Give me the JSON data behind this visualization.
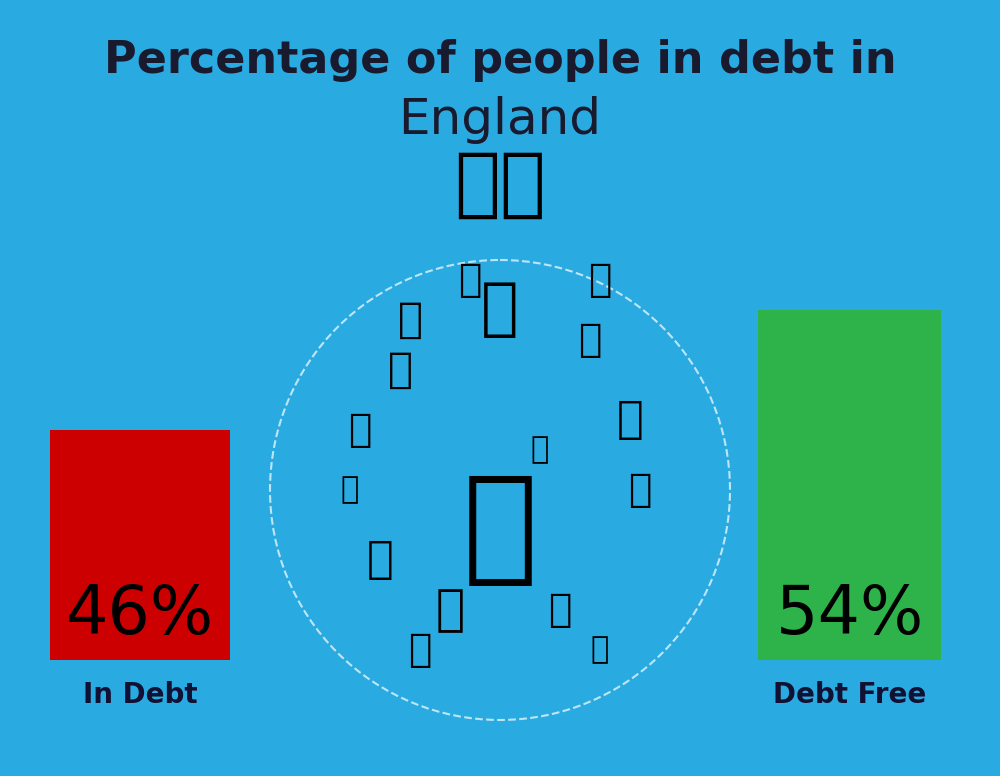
{
  "title_line1": "Percentage of people in debt in",
  "title_line2": "England",
  "background_color": "#29ABE2",
  "bar_left_value": "46%",
  "bar_left_label": "In Debt",
  "bar_left_color": "#CC0000",
  "bar_right_value": "54%",
  "bar_right_label": "Debt Free",
  "bar_right_color": "#2DB34A",
  "title_fontsize": 32,
  "title_color": "#1a1a2e",
  "label_fontsize": 20,
  "value_fontsize": 48,
  "label_color": "#111133",
  "flag_emoji": "🇬🇧",
  "flag_fontsize": 55,
  "fig_width": 10.0,
  "fig_height": 7.76
}
